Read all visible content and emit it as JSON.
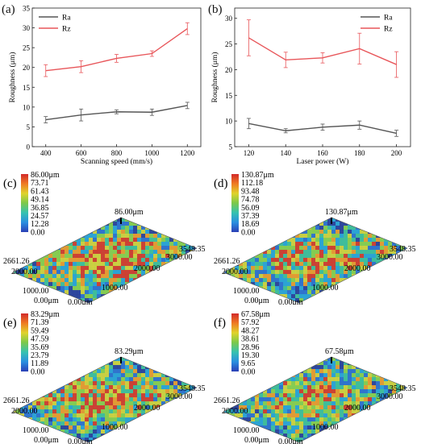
{
  "chart_data": [
    {
      "panel": "(a)",
      "type": "line",
      "xlabel": "Scanning speed (mm/s)",
      "ylabel": "Roughness (μm)",
      "x": [
        400,
        600,
        800,
        1000,
        1200
      ],
      "xticks": [
        "400",
        "600",
        "800",
        "1000",
        "1200"
      ],
      "yticks": [
        "0",
        "5",
        "10",
        "15",
        "20",
        "25",
        "30",
        "35"
      ],
      "ylim": [
        0,
        35
      ],
      "legend_position": "top-left",
      "series": [
        {
          "name": "Ra",
          "color": "#555555",
          "values": [
            6.8,
            8.0,
            8.8,
            8.7,
            10.4
          ],
          "err": [
            0.8,
            1.5,
            0.5,
            0.8,
            0.8
          ]
        },
        {
          "name": "Rz",
          "color": "#e8565a",
          "values": [
            19.2,
            20.2,
            22.3,
            23.5,
            29.8
          ],
          "err": [
            1.5,
            1.5,
            1.0,
            0.7,
            1.5
          ]
        }
      ]
    },
    {
      "panel": "(b)",
      "type": "line",
      "xlabel": "Laser power (W)",
      "ylabel": "Roughness (μm)",
      "x": [
        120,
        140,
        160,
        180,
        200
      ],
      "xticks": [
        "120",
        "140",
        "160",
        "180",
        "200"
      ],
      "yticks": [
        "5",
        "10",
        "15",
        "20",
        "25",
        "30"
      ],
      "ylim": [
        5,
        32
      ],
      "legend_position": "top-right",
      "series": [
        {
          "name": "Ra",
          "color": "#555555",
          "values": [
            9.5,
            8.1,
            8.8,
            9.2,
            7.6
          ],
          "err": [
            1.0,
            0.4,
            0.6,
            0.8,
            0.6
          ]
        },
        {
          "name": "Rz",
          "color": "#e8565a",
          "values": [
            26.2,
            21.9,
            22.3,
            24.1,
            21.0
          ],
          "err": [
            3.5,
            1.5,
            1.0,
            3.0,
            2.5
          ]
        }
      ]
    }
  ],
  "surfaces": [
    {
      "panel": "(c)",
      "scale": [
        "86.00μm",
        "73.71",
        "61.43",
        "49.14",
        "36.85",
        "24.57",
        "12.28",
        "0.00"
      ],
      "peak": "86.00μm",
      "y_label": "2661.26",
      "y_mid": "2000.00",
      "y_low": "1000.00",
      "y_zero": "0.00μm",
      "x_zero": "0.00μm",
      "x_mid": "1000.00",
      "x_2": "2000.00",
      "x_3": "3000.00",
      "x_max": "3548.35"
    },
    {
      "panel": "(d)",
      "scale": [
        "130.87μm",
        "112.18",
        "93.48",
        "74.78",
        "56.09",
        "37.39",
        "18.69",
        "0.00"
      ],
      "peak": "130.87μm",
      "y_label": "2661.26",
      "y_mid": "2000.00",
      "y_low": "1000.00",
      "y_zero": "0.00μm",
      "x_zero": "0.00μm",
      "x_mid": "1000.00",
      "x_2": "2000.00",
      "x_3": "3000.00",
      "x_max": "3548.35"
    },
    {
      "panel": "(e)",
      "scale": [
        "83.29μm",
        "71.39",
        "59.49",
        "47.59",
        "35.69",
        "23.79",
        "11.89",
        "0.00"
      ],
      "peak": "83.29μm",
      "y_label": "2661.26",
      "y_mid": "2000.00",
      "y_low": "1000.00",
      "y_zero": "0.00μm",
      "x_zero": "0.00μm",
      "x_mid": "1000.00",
      "x_2": "2000.00",
      "x_3": "3000.00",
      "x_max": "3548.35"
    },
    {
      "panel": "(f)",
      "scale": [
        "67.58μm",
        "57.92",
        "48.27",
        "38.61",
        "28.96",
        "19.30",
        "9.65",
        "0.00"
      ],
      "peak": "67.58μm",
      "y_label": "2661.26",
      "y_mid": "2000.00",
      "y_low": "1000.00",
      "y_zero": "0.00μm",
      "x_zero": "0.00μm",
      "x_mid": "1000.00",
      "x_2": "2000.00",
      "x_3": "3000.00",
      "x_max": "3548.35"
    }
  ]
}
